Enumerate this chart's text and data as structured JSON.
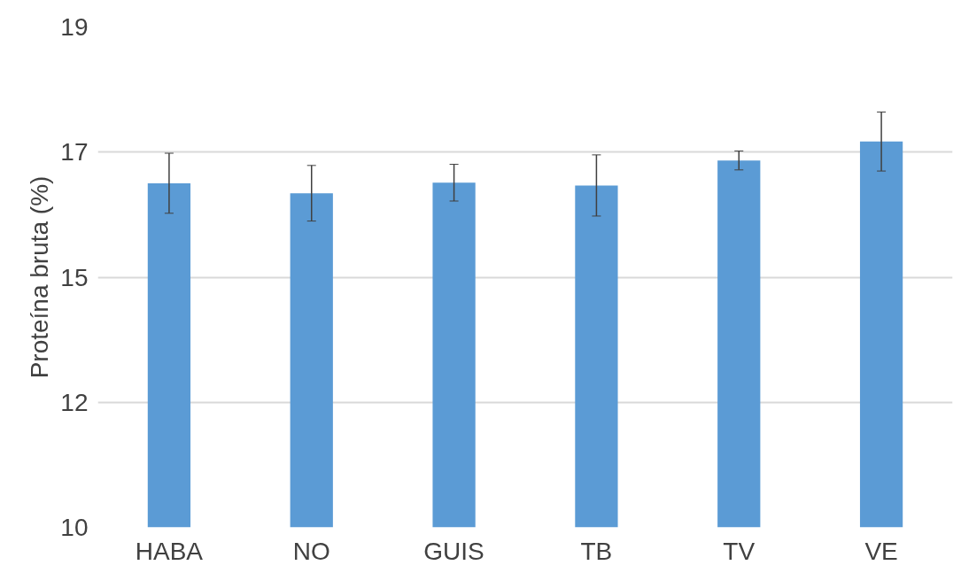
{
  "chart_data": {
    "type": "bar",
    "ylabel": "Proteína bruta (%)",
    "categories": [
      "HABA",
      "NO",
      "GUIS",
      "TB",
      "TV",
      "VE"
    ],
    "values": [
      16.19,
      16.01,
      16.2,
      16.15,
      16.6,
      16.94
    ],
    "errors": [
      0.54,
      0.5,
      0.33,
      0.55,
      0.17,
      0.53
    ],
    "color": "#5b9bd5",
    "ylim": [
      10,
      19
    ],
    "yticks": [
      10,
      {
        "value": 12.25,
        "label": "12"
      },
      {
        "value": 14.5,
        "label": "15"
      },
      {
        "value": 16.75,
        "label": "17"
      },
      19
    ],
    "grid": "y"
  }
}
